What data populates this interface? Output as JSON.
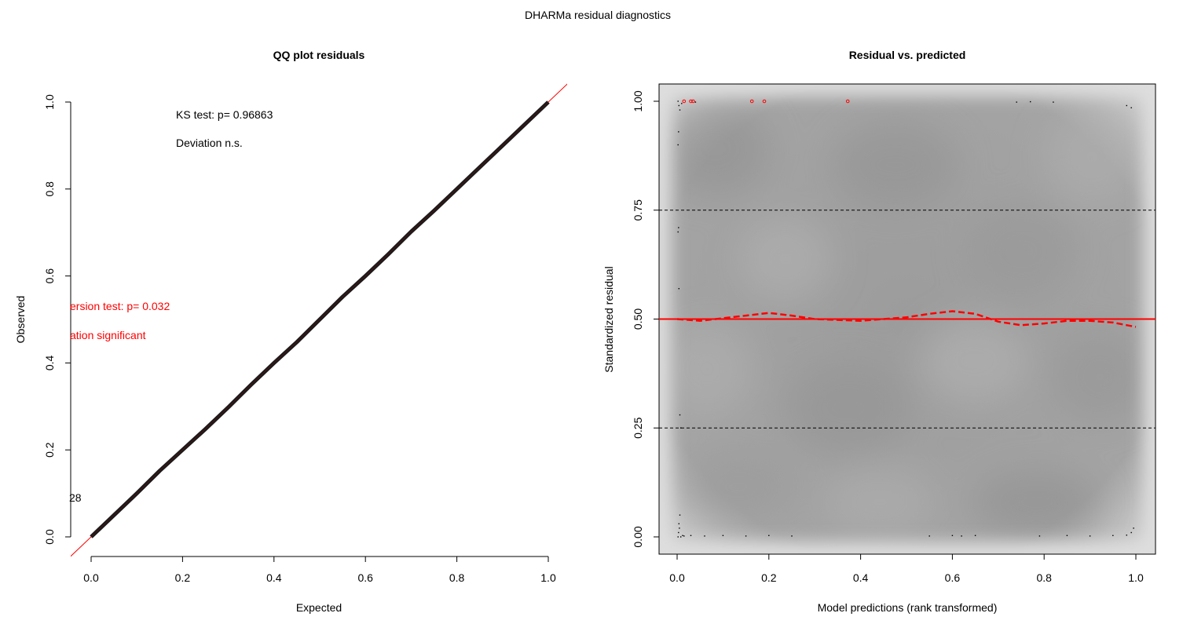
{
  "suptitle": "DHARMa residual diagnostics",
  "chart_data": [
    {
      "type": "scatter",
      "title": "QQ plot residuals",
      "xlabel": "Expected",
      "ylabel": "Observed",
      "xlim": [
        0,
        1
      ],
      "ylim": [
        0,
        1
      ],
      "xticks": [
        "0.0",
        "0.2",
        "0.4",
        "0.6",
        "0.8",
        "1.0"
      ],
      "yticks": [
        "0.0",
        "0.2",
        "0.4",
        "0.6",
        "0.8",
        "1.0"
      ],
      "series": [
        {
          "x": [
            0.0,
            0.05,
            0.1,
            0.15,
            0.2,
            0.25,
            0.3,
            0.35,
            0.4,
            0.45,
            0.5,
            0.55,
            0.6,
            0.65,
            0.7,
            0.75,
            0.8,
            0.85,
            0.9,
            0.95,
            1.0
          ],
          "y": [
            0.0,
            0.05,
            0.1,
            0.152,
            0.2,
            0.248,
            0.298,
            0.35,
            0.4,
            0.448,
            0.5,
            0.552,
            0.6,
            0.65,
            0.702,
            0.75,
            0.8,
            0.85,
            0.9,
            0.95,
            1.0
          ]
        }
      ],
      "reference_line": {
        "slope": 1,
        "intercept": 0,
        "color": "#ff0000"
      },
      "annotations": [
        {
          "text": "KS test: p= 0.96863",
          "color": "#000000"
        },
        {
          "text": "Deviation  n.s.",
          "color": "#000000"
        },
        {
          "text": "ersion test: p= 0.032",
          "color": "#ff0000"
        },
        {
          "text": "ation  significant",
          "color": "#ff0000"
        },
        {
          "text": "28",
          "color": "#000000"
        }
      ]
    },
    {
      "type": "scatter",
      "title": "Residual vs. predicted",
      "xlabel": "Model predictions (rank transformed)",
      "ylabel": "Standardized residual",
      "xlim": [
        0,
        1
      ],
      "ylim": [
        0,
        1
      ],
      "xticks": [
        "0.0",
        "0.2",
        "0.4",
        "0.6",
        "0.8",
        "1.0"
      ],
      "yticks": [
        "0.00",
        "0.25",
        "0.50",
        "0.75",
        "1.00"
      ],
      "background": "density-shaded grey",
      "hlines": [
        {
          "y": 0.25,
          "style": "dashed",
          "color": "#000000"
        },
        {
          "y": 0.5,
          "style": "solid",
          "color": "#ff0000"
        },
        {
          "y": 0.75,
          "style": "dashed",
          "color": "#000000"
        }
      ],
      "quantile_curve": {
        "color": "#ff0000",
        "x": [
          0.0,
          0.05,
          0.1,
          0.15,
          0.2,
          0.25,
          0.3,
          0.35,
          0.4,
          0.45,
          0.5,
          0.55,
          0.6,
          0.65,
          0.7,
          0.75,
          0.8,
          0.85,
          0.9,
          0.95,
          1.0
        ],
        "y": [
          0.5,
          0.496,
          0.502,
          0.508,
          0.514,
          0.508,
          0.5,
          0.498,
          0.496,
          0.5,
          0.504,
          0.512,
          0.518,
          0.512,
          0.494,
          0.486,
          0.49,
          0.496,
          0.496,
          0.492,
          0.482
        ]
      },
      "points": {
        "x": [
          0.002,
          0.003,
          0.004,
          0.005,
          0.006,
          0.008,
          0.012,
          0.015,
          0.03,
          0.06,
          0.1,
          0.15,
          0.2,
          0.25,
          0.55,
          0.6,
          0.62,
          0.65,
          0.79,
          0.85,
          0.9,
          0.95,
          0.98,
          0.99,
          0.995,
          0.002,
          0.004,
          0.006,
          0.01,
          0.04,
          0.74,
          0.77,
          0.82,
          0.98,
          0.99,
          0.002,
          0.003,
          0.004,
          0.006,
          0.008,
          0.002,
          0.003
        ],
        "y": [
          0.0,
          0.01,
          0.03,
          0.02,
          0.05,
          0.0,
          0.003,
          0.002,
          0.003,
          0.002,
          0.003,
          0.002,
          0.003,
          0.002,
          0.002,
          0.003,
          0.002,
          0.003,
          0.002,
          0.003,
          0.002,
          0.003,
          0.004,
          0.01,
          0.02,
          1.0,
          0.99,
          0.98,
          0.995,
          0.998,
          0.998,
          0.999,
          0.998,
          0.99,
          0.985,
          0.7,
          0.71,
          0.57,
          0.28,
          0.25,
          0.9,
          0.93
        ]
      },
      "outliers": {
        "color": "#ff0000",
        "x": [
          0.015,
          0.03,
          0.035,
          0.163,
          0.19,
          0.372
        ],
        "y": [
          1.0,
          1.0,
          1.0,
          1.0,
          1.0,
          1.0
        ]
      }
    }
  ]
}
